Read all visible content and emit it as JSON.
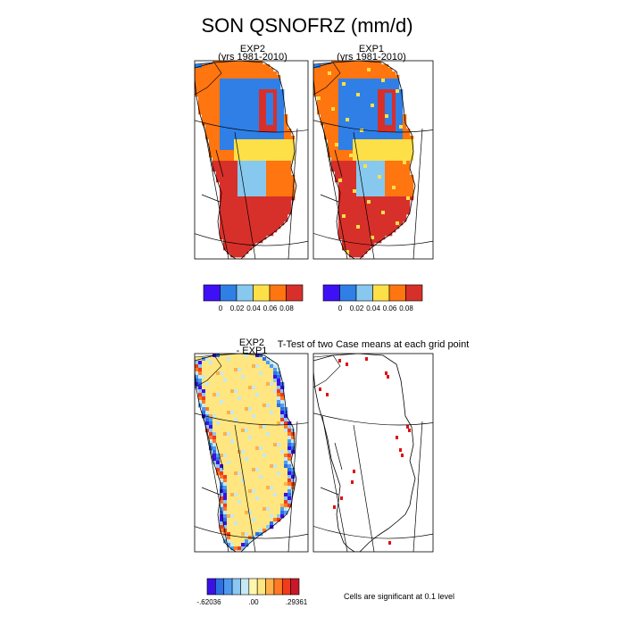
{
  "figure": {
    "title": "SON QSNOFRZ (mm/d)"
  },
  "chart_data": [
    {
      "type": "heatmap",
      "title": "EXP2",
      "subtitle": "(yrs 1981-2010)",
      "colorbar": {
        "colors": [
          "#3f10f5",
          "#2f7fe6",
          "#87c8ef",
          "#fde047",
          "#ff7510",
          "#d7302a"
        ],
        "tick_labels": [
          "0",
          "0.02",
          "0.04",
          "0.06",
          "0.08"
        ]
      }
    },
    {
      "type": "heatmap",
      "title": "EXP1",
      "subtitle": "(yrs 1981-2010)",
      "colorbar": {
        "colors": [
          "#3f10f5",
          "#2f7fe6",
          "#87c8ef",
          "#fde047",
          "#ff7510",
          "#d7302a"
        ],
        "tick_labels": [
          "0",
          "0.02",
          "0.04",
          "0.06",
          "0.08"
        ]
      }
    },
    {
      "type": "heatmap",
      "title": "EXP2",
      "subtitle": "- EXP1",
      "colorbar": {
        "colors": [
          "#3a10e6",
          "#2e6fe8",
          "#4f9af0",
          "#8cc6f2",
          "#c4e8f5",
          "#fff7b0",
          "#ffe680",
          "#ffb04a",
          "#ff7a22",
          "#f03c1a",
          "#c9182a"
        ],
        "tick_labels": [
          "-.62036",
          ".00",
          ".29361"
        ]
      }
    },
    {
      "type": "heatmap",
      "title": "T-Test of two Case means at each grid point",
      "note": "Cells are significant at 0.1 level"
    }
  ]
}
